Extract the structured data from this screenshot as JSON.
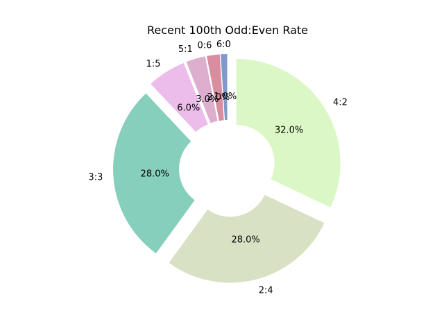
{
  "chart_data": {
    "type": "pie",
    "title": "Recent 100th Odd:Even Rate",
    "donut": true,
    "exploded": true,
    "legend": "none",
    "slices": [
      {
        "label": "4:2",
        "value": 32.0,
        "pct_label": "32.0%",
        "color": "#dbf7c6"
      },
      {
        "label": "2:4",
        "value": 28.0,
        "pct_label": "28.0%",
        "color": "#d8e1c4"
      },
      {
        "label": "3:3",
        "value": 28.0,
        "pct_label": "28.0%",
        "color": "#87cfbd"
      },
      {
        "label": "1:5",
        "value": 6.0,
        "pct_label": "6.0%",
        "color": "#ecbdea"
      },
      {
        "label": "5:1",
        "value": 3.0,
        "pct_label": "3.0%",
        "color": "#ddaece"
      },
      {
        "label": "0:6",
        "value": 2.0,
        "pct_label": "2.0%",
        "color": "#d98ea0"
      },
      {
        "label": "6:0",
        "value": 1.0,
        "pct_label": "1.0%",
        "color": "#7f9ac9"
      }
    ]
  }
}
